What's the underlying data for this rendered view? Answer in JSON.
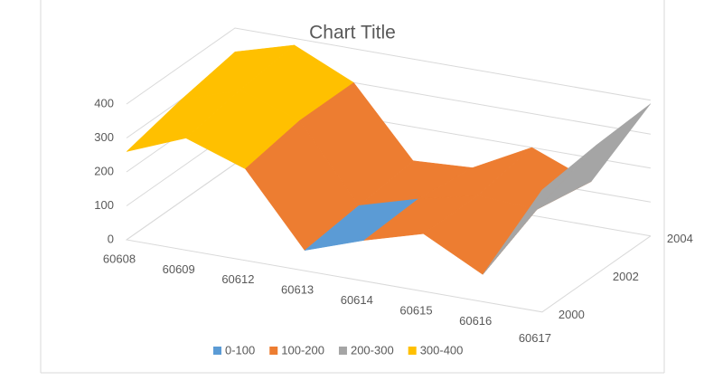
{
  "chart_data": {
    "type": "surface",
    "title": "Chart Title",
    "categories": [
      "60608",
      "60609",
      "60612",
      "60613",
      "60614",
      "60615",
      "60616",
      "60617"
    ],
    "series": [
      {
        "name": "2000",
        "values": [
          260,
          330,
          270,
          60,
          120,
          170,
          80,
          360
        ]
      },
      {
        "name": "2002",
        "values": [
          300,
          360,
          300,
          80,
          130,
          170,
          160,
          380
        ]
      },
      {
        "name": "2004",
        "values": [
          330,
          380,
          300,
          100,
          110,
          200,
          130,
          390
        ]
      }
    ],
    "zlim": [
      0,
      400
    ],
    "zticks": [
      0,
      100,
      200,
      300,
      400
    ],
    "grid": true,
    "legend_position": "bottom",
    "bands": [
      {
        "name": "0-100",
        "color": "#5b9bd5"
      },
      {
        "name": "100-200",
        "color": "#ed7d31"
      },
      {
        "name": "200-300",
        "color": "#a5a5a5"
      },
      {
        "name": "300-400",
        "color": "#ffc000"
      }
    ]
  }
}
